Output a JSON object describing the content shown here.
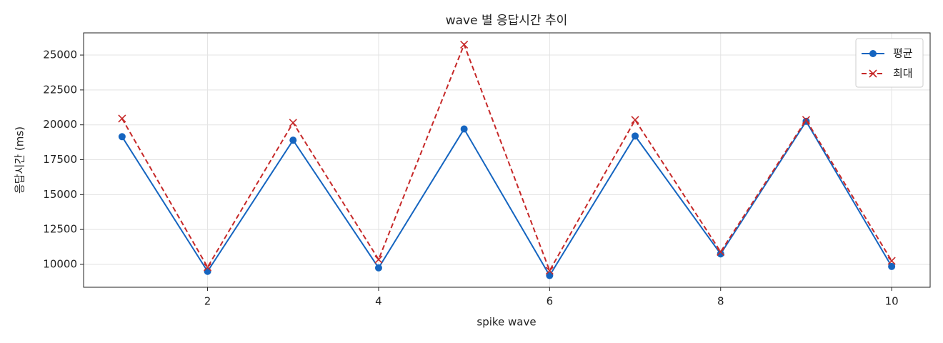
{
  "chart_data": {
    "type": "line",
    "title": "wave 별 응답시간 추이",
    "xlabel": "spike wave",
    "ylabel": "응답시간 (ms)",
    "x": [
      1,
      2,
      3,
      4,
      5,
      6,
      7,
      8,
      9,
      10
    ],
    "series": [
      {
        "name": "평균",
        "color": "#1565c0",
        "linestyle": "solid",
        "marker": "o",
        "values": [
          19150,
          9500,
          18900,
          9750,
          19700,
          9200,
          19200,
          10750,
          20250,
          9850
        ]
      },
      {
        "name": "최대",
        "color": "#c62828",
        "linestyle": "dashed",
        "marker": "x",
        "values": [
          20450,
          9800,
          20150,
          10350,
          25750,
          9550,
          20350,
          10900,
          20350,
          10250
        ]
      }
    ],
    "xlim": [
      0.55,
      10.45
    ],
    "xticks": [
      2,
      4,
      6,
      8,
      10
    ],
    "ylim": [
      8360,
      26590
    ],
    "yticks": [
      10000,
      12500,
      15000,
      17500,
      20000,
      22500,
      25000
    ],
    "grid": true,
    "legend": "upper right"
  }
}
